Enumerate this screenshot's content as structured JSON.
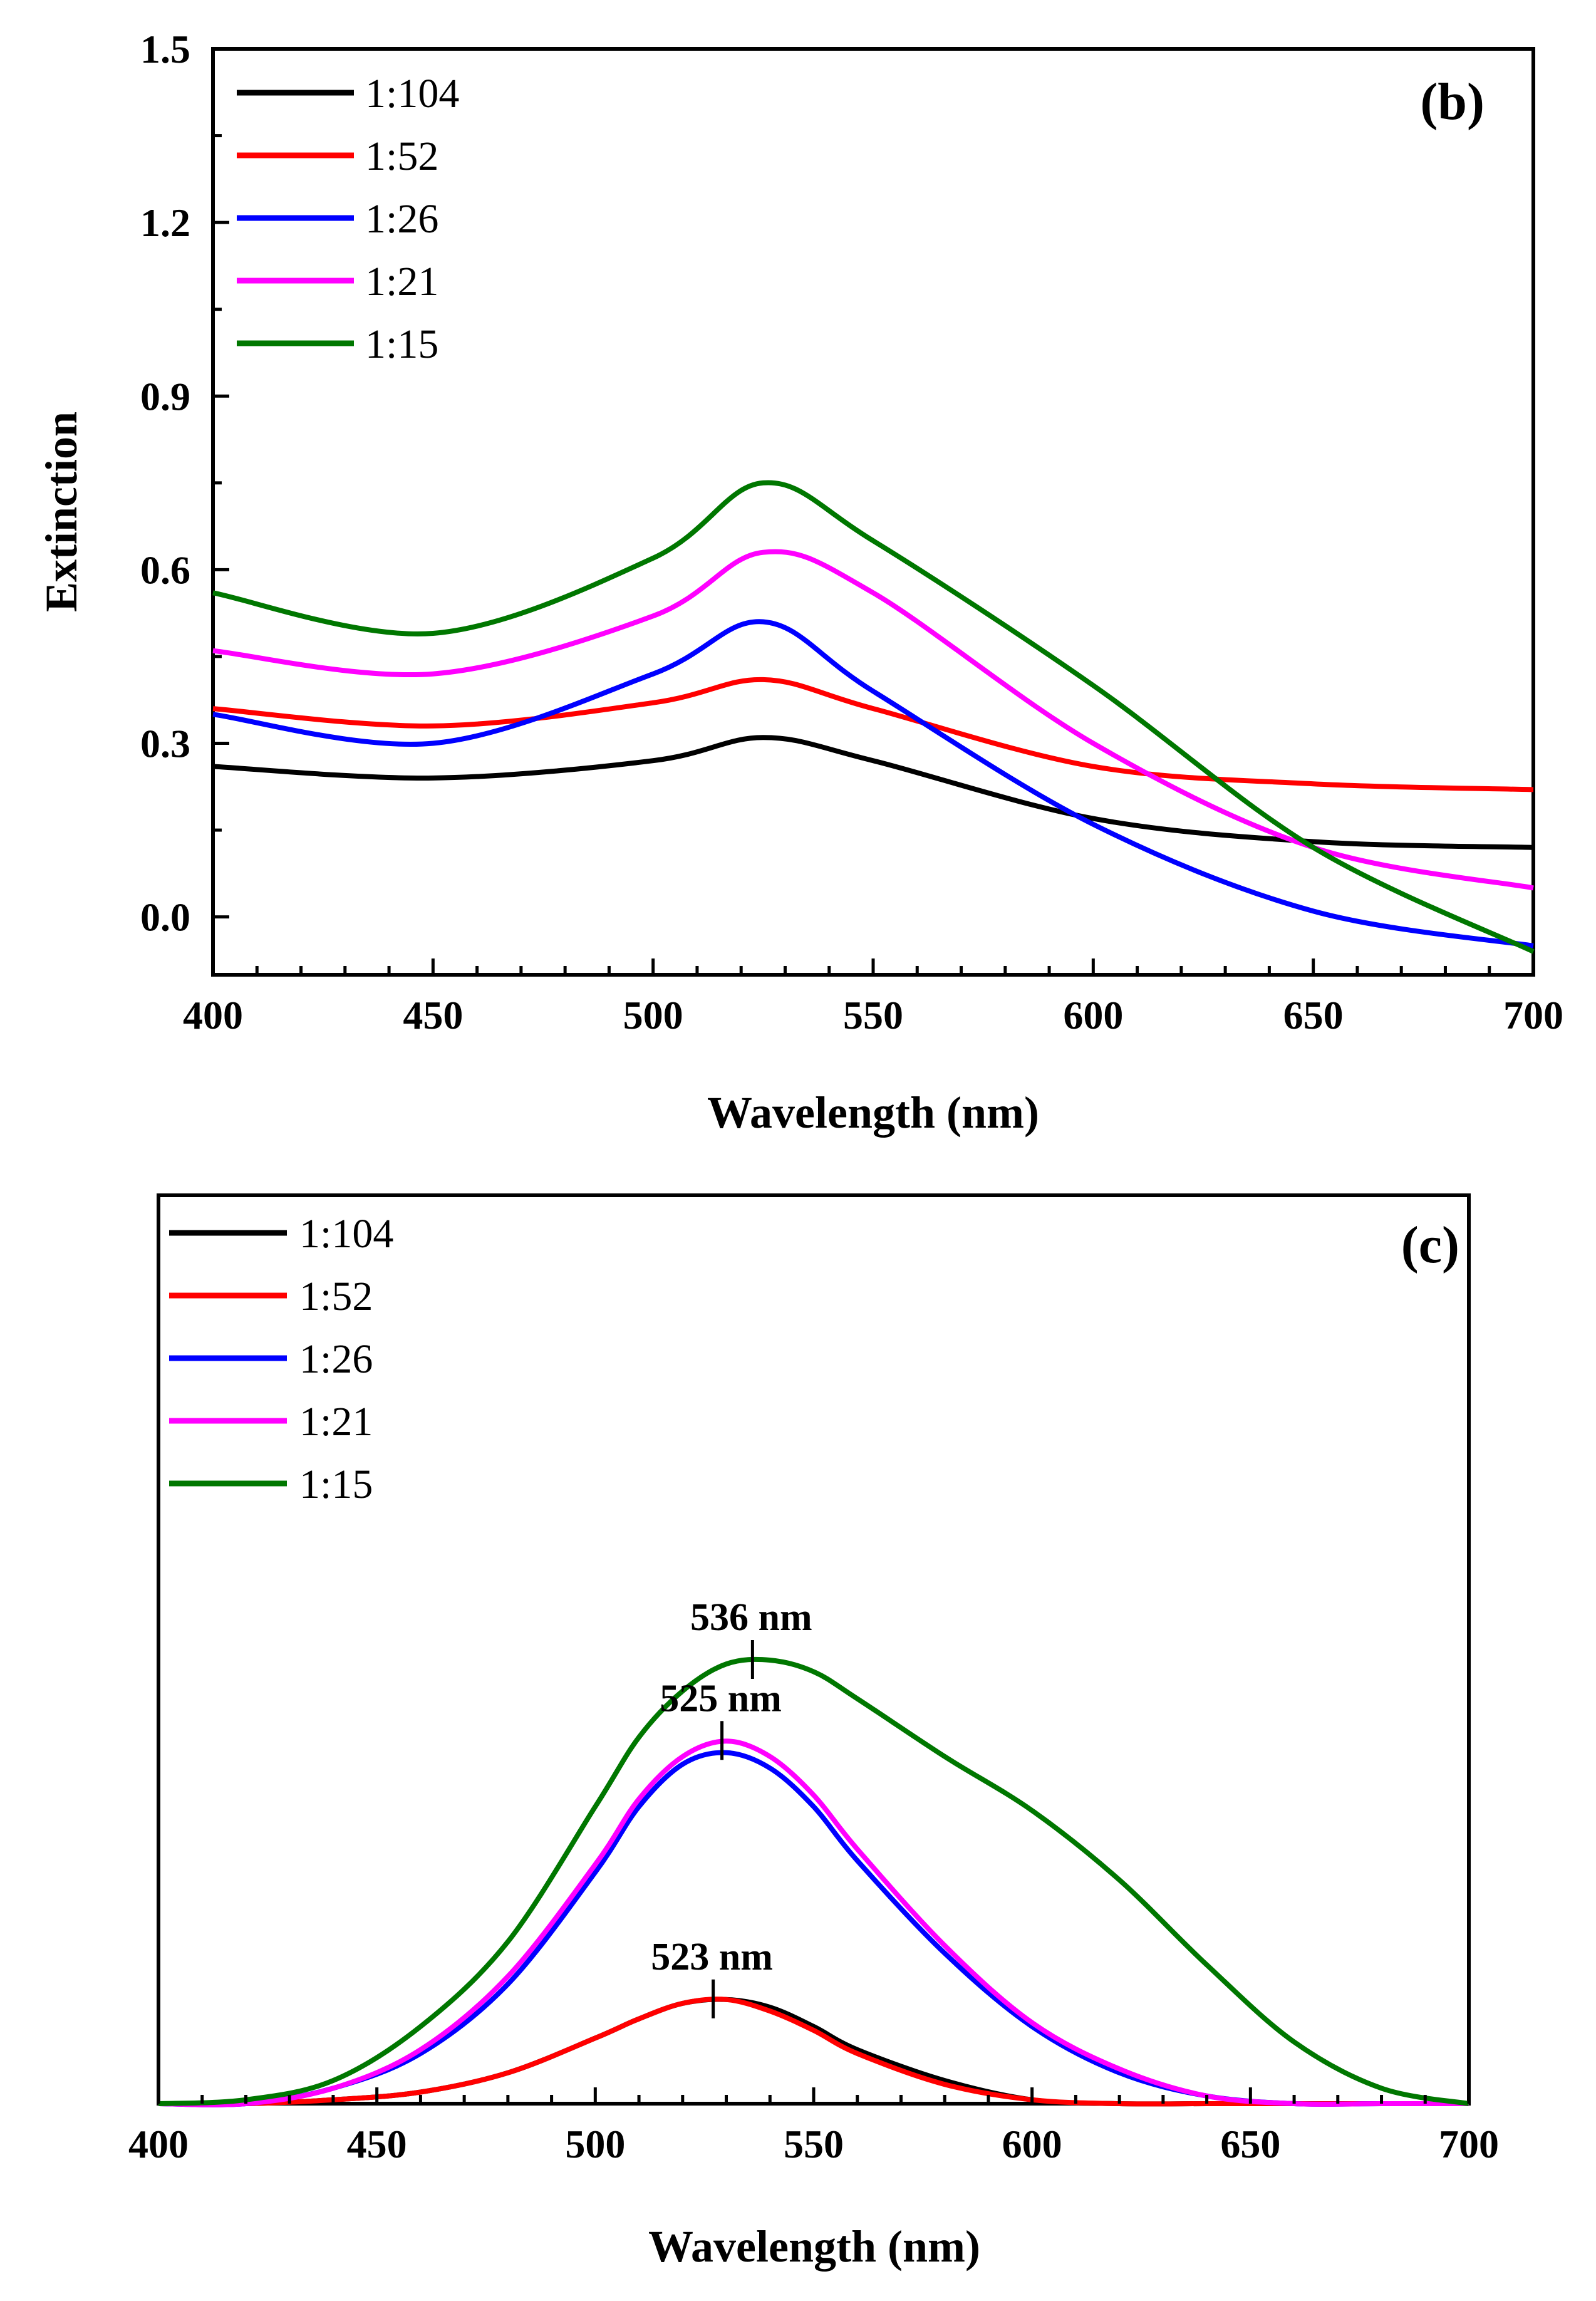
{
  "chart_data": [
    {
      "panel": "(b)",
      "type": "line",
      "xlabel": "Wavelength (nm)",
      "ylabel": "Extinction",
      "xlim": [
        400,
        700
      ],
      "ylim": [
        -0.1,
        1.5
      ],
      "xticks": [
        "400",
        "450",
        "500",
        "550",
        "600",
        "650",
        "700"
      ],
      "yticks": [
        "0.0",
        "0.3",
        "0.6",
        "0.9",
        "1.2",
        "1.5"
      ],
      "x": [
        400,
        450,
        500,
        525,
        550,
        600,
        650,
        700
      ],
      "series": [
        {
          "name": "1:104",
          "color": "#000000",
          "values": [
            0.26,
            0.24,
            0.27,
            0.31,
            0.27,
            0.17,
            0.13,
            0.12
          ]
        },
        {
          "name": "1:52",
          "color": "#ff0000",
          "values": [
            0.36,
            0.33,
            0.37,
            0.41,
            0.36,
            0.26,
            0.23,
            0.22
          ]
        },
        {
          "name": "1:26",
          "color": "#0000ff",
          "values": [
            0.35,
            0.3,
            0.42,
            0.51,
            0.39,
            0.16,
            0.01,
            -0.05
          ]
        },
        {
          "name": "1:21",
          "color": "#ff00ff",
          "values": [
            0.46,
            0.42,
            0.52,
            0.63,
            0.56,
            0.3,
            0.12,
            0.05
          ]
        },
        {
          "name": "1:15",
          "color": "#007700",
          "values": [
            0.56,
            0.49,
            0.62,
            0.75,
            0.65,
            0.4,
            0.12,
            -0.06
          ]
        }
      ]
    },
    {
      "panel": "(c)",
      "type": "line",
      "xlabel": "Wavelength (nm)",
      "ylabel": "",
      "xlim": [
        400,
        700
      ],
      "ylim": [
        0,
        1.1
      ],
      "xticks": [
        "400",
        "450",
        "500",
        "550",
        "600",
        "650",
        "700"
      ],
      "x": [
        400,
        420,
        440,
        460,
        480,
        500,
        510,
        520,
        530,
        540,
        550,
        560,
        580,
        600,
        620,
        640,
        660,
        680,
        700
      ],
      "series": [
        {
          "name": "1:104",
          "color": "#000000",
          "values": [
            0.0,
            0.0,
            0.01,
            0.03,
            0.08,
            0.17,
            0.22,
            0.26,
            0.27,
            0.25,
            0.2,
            0.14,
            0.06,
            0.01,
            0.0,
            0.0,
            0.0,
            0.0,
            0.0
          ]
        },
        {
          "name": "1:52",
          "color": "#ff0000",
          "values": [
            0.0,
            0.0,
            0.01,
            0.03,
            0.08,
            0.17,
            0.22,
            0.26,
            0.27,
            0.24,
            0.19,
            0.13,
            0.05,
            0.01,
            0.0,
            0.0,
            0.0,
            0.0,
            0.0
          ]
        },
        {
          "name": "1:26",
          "color": "#0000ff",
          "values": [
            0.0,
            0.0,
            0.04,
            0.13,
            0.31,
            0.6,
            0.77,
            0.88,
            0.91,
            0.87,
            0.77,
            0.63,
            0.39,
            0.2,
            0.08,
            0.02,
            0.0,
            0.0,
            0.0
          ]
        },
        {
          "name": "1:21",
          "color": "#ff00ff",
          "values": [
            0.0,
            0.0,
            0.04,
            0.14,
            0.33,
            0.62,
            0.79,
            0.9,
            0.94,
            0.9,
            0.8,
            0.66,
            0.41,
            0.21,
            0.09,
            0.02,
            0.0,
            0.0,
            0.0
          ]
        },
        {
          "name": "1:15",
          "color": "#007700",
          "values": [
            0.0,
            0.01,
            0.06,
            0.2,
            0.42,
            0.77,
            0.95,
            1.07,
            1.14,
            1.15,
            1.12,
            1.05,
            0.9,
            0.76,
            0.58,
            0.36,
            0.16,
            0.04,
            0.0
          ]
        }
      ],
      "annotations": [
        {
          "text": "536 nm",
          "x": 536,
          "y": 1.15
        },
        {
          "text": "525 nm",
          "x": 529,
          "y": 0.94
        },
        {
          "text": "523 nm",
          "x": 527,
          "y": 0.27
        }
      ]
    }
  ]
}
